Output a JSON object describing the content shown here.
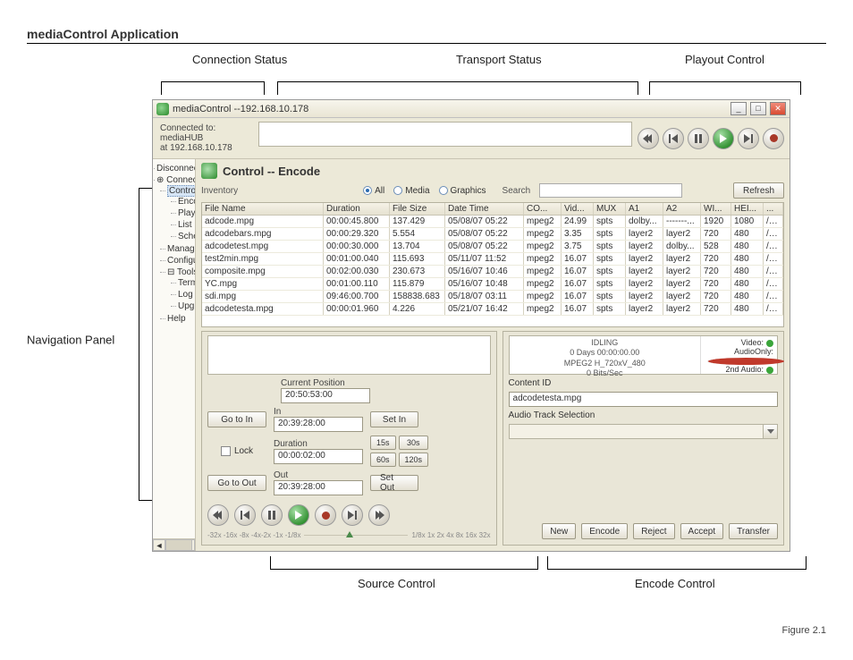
{
  "doc": {
    "title": "mediaControl Application",
    "figure": "Figure 2.1"
  },
  "annotations": {
    "connection": "Connection Status",
    "transport": "Transport Status",
    "playout": "Playout Control",
    "nav": "Navigation Panel",
    "source": "Source Control",
    "encode": "Encode Control"
  },
  "window": {
    "title": "mediaControl --192.168.10.178"
  },
  "connection": {
    "line1": "Connected to: mediaHUB",
    "line2": "at 192.168.10.178"
  },
  "nav": {
    "disconnect": "Disconnect",
    "connect": "Connect",
    "control": "Control",
    "encode": "Encode",
    "playout": "Playout",
    "list": "List",
    "schedule": "Schedule",
    "manage": "Manage",
    "configure": "Configure",
    "tools": "Tools",
    "terminal": "Terminal",
    "log": "Log",
    "upgrade": "Upgrade",
    "help": "Help"
  },
  "panel": {
    "title": "Control -- Encode"
  },
  "inventory": {
    "label": "Inventory",
    "filter_all": "All",
    "filter_media": "Media",
    "filter_graphics": "Graphics",
    "search_label": "Search",
    "refresh": "Refresh",
    "columns": {
      "name": "File Name",
      "dur": "Duration",
      "size": "File Size",
      "dt": "Date Time",
      "co": "CO...",
      "vid": "Vid...",
      "mux": "MUX",
      "a1": "A1",
      "a2": "A2",
      "wi": "WI...",
      "hei": "HEI...",
      "x": "..."
    },
    "rows": [
      {
        "name": "adcode.mpg",
        "dur": "00:00:45.800",
        "size": "137.429",
        "dt": "05/08/07 05:22",
        "co": "mpeg2",
        "vid": "24.99",
        "mux": "spts",
        "a1": "dolby...",
        "a2": "-------...",
        "wi": "1920",
        "hei": "1080",
        "x": "/m..."
      },
      {
        "name": "adcodebars.mpg",
        "dur": "00:00:29.320",
        "size": "5.554",
        "dt": "05/08/07 05:22",
        "co": "mpeg2",
        "vid": "3.35",
        "mux": "spts",
        "a1": "layer2",
        "a2": "layer2",
        "wi": "720",
        "hei": "480",
        "x": "/m..."
      },
      {
        "name": "adcodetest.mpg",
        "dur": "00:00:30.000",
        "size": "13.704",
        "dt": "05/08/07 05:22",
        "co": "mpeg2",
        "vid": "3.75",
        "mux": "spts",
        "a1": "layer2",
        "a2": "dolby...",
        "wi": "528",
        "hei": "480",
        "x": "/m..."
      },
      {
        "name": "test2min.mpg",
        "dur": "00:01:00.040",
        "size": "115.693",
        "dt": "05/11/07 11:52",
        "co": "mpeg2",
        "vid": "16.07",
        "mux": "spts",
        "a1": "layer2",
        "a2": "layer2",
        "wi": "720",
        "hei": "480",
        "x": "/m..."
      },
      {
        "name": "composite.mpg",
        "dur": "00:02:00.030",
        "size": "230.673",
        "dt": "05/16/07 10:46",
        "co": "mpeg2",
        "vid": "16.07",
        "mux": "spts",
        "a1": "layer2",
        "a2": "layer2",
        "wi": "720",
        "hei": "480",
        "x": "/m..."
      },
      {
        "name": "YC.mpg",
        "dur": "00:01:00.110",
        "size": "115.879",
        "dt": "05/16/07 10:48",
        "co": "mpeg2",
        "vid": "16.07",
        "mux": "spts",
        "a1": "layer2",
        "a2": "layer2",
        "wi": "720",
        "hei": "480",
        "x": "/m..."
      },
      {
        "name": "sdi.mpg",
        "dur": "09:46:00.700",
        "size": "158838.683",
        "dt": "05/18/07 03:11",
        "co": "mpeg2",
        "vid": "16.07",
        "mux": "spts",
        "a1": "layer2",
        "a2": "layer2",
        "wi": "720",
        "hei": "480",
        "x": "/m..."
      },
      {
        "name": "adcodetesta.mpg",
        "dur": "00:00:01.960",
        "size": "4.226",
        "dt": "05/21/07 16:42",
        "co": "mpeg2",
        "vid": "16.07",
        "mux": "spts",
        "a1": "layer2",
        "a2": "layer2",
        "wi": "720",
        "hei": "480",
        "x": "/m..."
      }
    ]
  },
  "status": {
    "l1": "IDLING",
    "l2": "0 Days 00:00:00.00",
    "l3": "MPEG2 H_720xV_480",
    "l4": "0 Bits/Sec",
    "video": "Video:",
    "audioonly": "AudioOnly:",
    "audio2": "2nd Audio:"
  },
  "source": {
    "current_label": "Current Position",
    "current": "20:50:53:00",
    "in_label": "In",
    "in": "20:39:28:00",
    "dur_label": "Duration",
    "dur": "00:00:02:00",
    "out_label": "Out",
    "out": "20:39:28:00",
    "goto_in": "Go to In",
    "goto_out": "Go to Out",
    "lock": "Lock",
    "set_in": "Set In",
    "set_out": "Set Out",
    "b15": "15s",
    "b30": "30s",
    "b60": "60s",
    "b120": "120s",
    "speeds_left": "-32x -16x -8x -4x-2x -1x -1/8x",
    "speeds_right": "1/8x  1x  2x  4x   8x  16x 32x"
  },
  "encode": {
    "content_id_label": "Content ID",
    "content_id": "adcodetesta.mpg",
    "audio_label": "Audio Track Selection",
    "new": "New",
    "encode": "Encode",
    "reject": "Reject",
    "accept": "Accept",
    "transfer": "Transfer"
  }
}
